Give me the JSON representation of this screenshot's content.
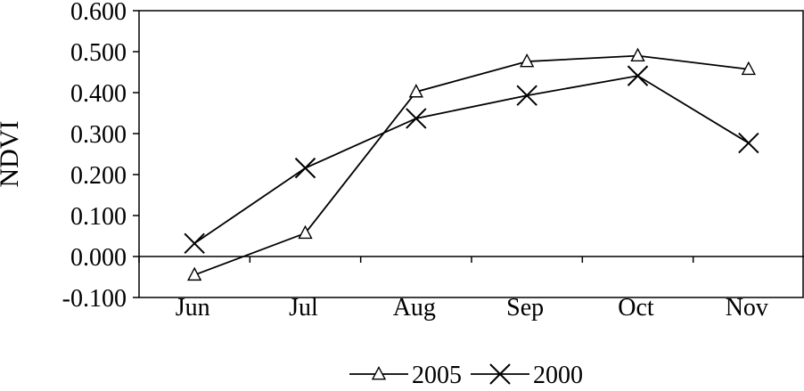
{
  "chart_data": {
    "type": "line",
    "title": "",
    "xlabel": "",
    "ylabel": "NDVI",
    "categories": [
      "Jun",
      "Jul",
      "Aug",
      "Sep",
      "Oct",
      "Nov"
    ],
    "ylim": [
      -0.1,
      0.6
    ],
    "yticks": [
      -0.1,
      0.0,
      0.1,
      0.2,
      0.3,
      0.4,
      0.5,
      0.6
    ],
    "ytick_labels": [
      "-0.100",
      "0.000",
      "0.100",
      "0.200",
      "0.300",
      "0.400",
      "0.500",
      "0.600"
    ],
    "grid": false,
    "legend_position": "bottom",
    "series": [
      {
        "name": "2005",
        "marker": "triangle",
        "color": "#000000",
        "values": [
          -0.045,
          0.057,
          0.402,
          0.476,
          0.49,
          0.457
        ]
      },
      {
        "name": "2000",
        "marker": "x",
        "color": "#000000",
        "values": [
          0.032,
          0.216,
          0.337,
          0.393,
          0.441,
          0.277
        ]
      }
    ]
  }
}
